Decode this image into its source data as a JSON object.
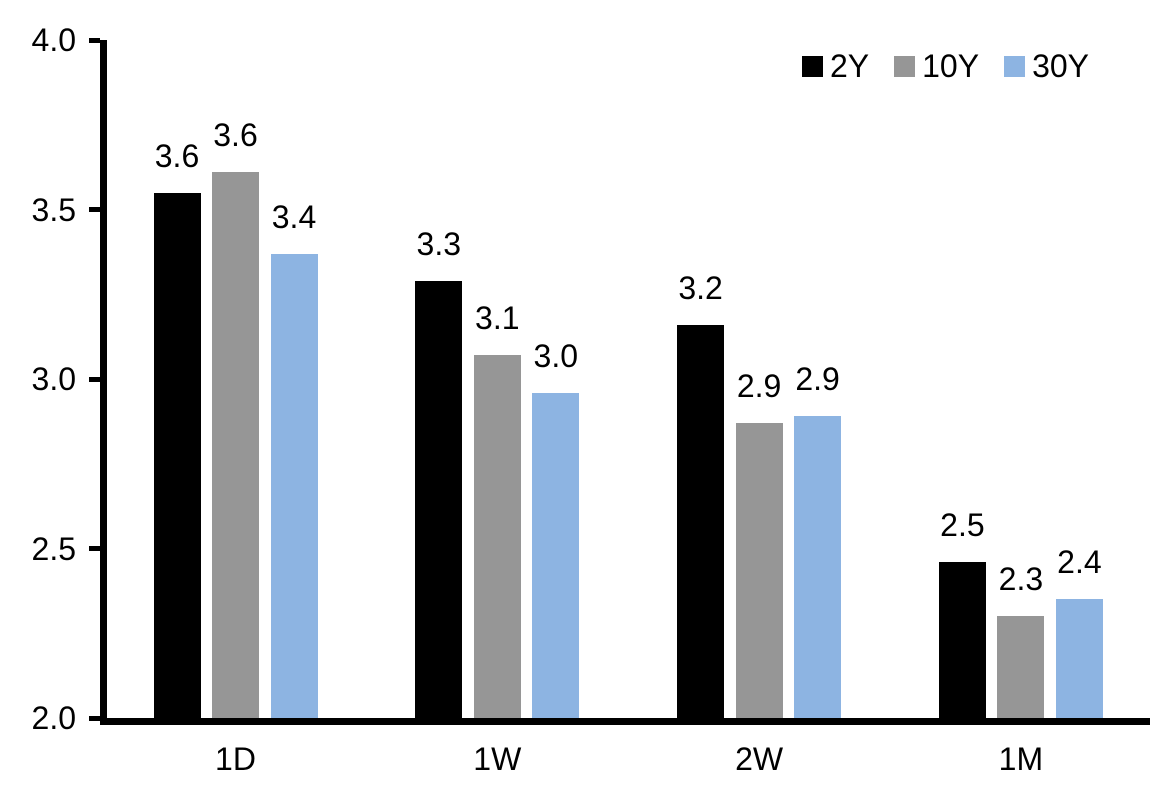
{
  "chart_data": {
    "type": "bar",
    "title": "",
    "categories": [
      "1D",
      "1W",
      "2W",
      "1M"
    ],
    "series": [
      {
        "name": "2Y",
        "color": "#000000",
        "values": [
          3.55,
          3.29,
          3.16,
          2.46
        ],
        "labels": [
          "3.6",
          "3.3",
          "3.2",
          "2.5"
        ]
      },
      {
        "name": "10Y",
        "color": "#969696",
        "values": [
          3.61,
          3.07,
          2.87,
          2.3
        ],
        "labels": [
          "3.6",
          "3.1",
          "2.9",
          "2.3"
        ]
      },
      {
        "name": "30Y",
        "color": "#8DB4E2",
        "values": [
          3.37,
          2.96,
          2.89,
          2.35
        ],
        "labels": [
          "3.4",
          "3.0",
          "2.9",
          "2.4"
        ]
      }
    ],
    "y_axis": {
      "min": 2.0,
      "max": 4.0,
      "tick_step": 0.5,
      "tick_labels": [
        "2.0",
        "2.5",
        "3.0",
        "3.5",
        "4.0"
      ]
    },
    "legend": {
      "position": "top-right",
      "entries": [
        "2Y",
        "10Y",
        "30Y"
      ]
    },
    "grid": false,
    "background_color": "#FFFFFF",
    "axis_color": "#000000",
    "label_color": "#000000"
  }
}
